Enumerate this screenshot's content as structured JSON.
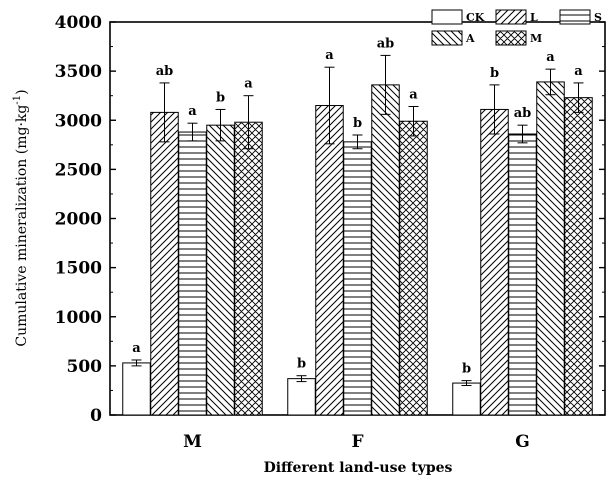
{
  "chart_data": {
    "type": "bar",
    "title": "",
    "xlabel": "Different land-use types",
    "ylabel": "Cumulative mineralization (mg·kg",
    "ylabel_sup": "-1",
    "ylabel_end": ")",
    "ylim": [
      0,
      4000
    ],
    "yticks": [
      "0",
      "500",
      "1000",
      "1500",
      "2000",
      "2500",
      "3000",
      "3500",
      "4000"
    ],
    "ytick_values": [
      0,
      500,
      1000,
      1500,
      2000,
      2500,
      3000,
      3500,
      4000
    ],
    "categories": [
      "M",
      "F",
      "G"
    ],
    "legend_position": "top-right",
    "series": [
      {
        "name": "CK",
        "pattern": "blank",
        "values": [
          530,
          370,
          325
        ],
        "errors": [
          30,
          30,
          25
        ],
        "labels": [
          "a",
          "b",
          "b"
        ]
      },
      {
        "name": "L",
        "pattern": "diag-fwd",
        "values": [
          3080,
          3150,
          3110
        ],
        "errors": [
          300,
          390,
          250
        ],
        "labels": [
          "ab",
          "a",
          "b"
        ]
      },
      {
        "name": "S",
        "pattern": "horizontal",
        "values": [
          2880,
          2780,
          2860
        ],
        "errors": [
          90,
          70,
          90
        ],
        "labels": [
          "a",
          "b",
          "ab"
        ]
      },
      {
        "name": "A",
        "pattern": "diag-back",
        "values": [
          2950,
          3360,
          3390
        ],
        "errors": [
          160,
          300,
          130
        ],
        "labels": [
          "b",
          "ab",
          "a"
        ]
      },
      {
        "name": "M",
        "pattern": "crosshatch",
        "values": [
          2980,
          2990,
          3230
        ],
        "errors": [
          270,
          150,
          150
        ],
        "labels": [
          "a",
          "a",
          "a"
        ]
      }
    ]
  }
}
